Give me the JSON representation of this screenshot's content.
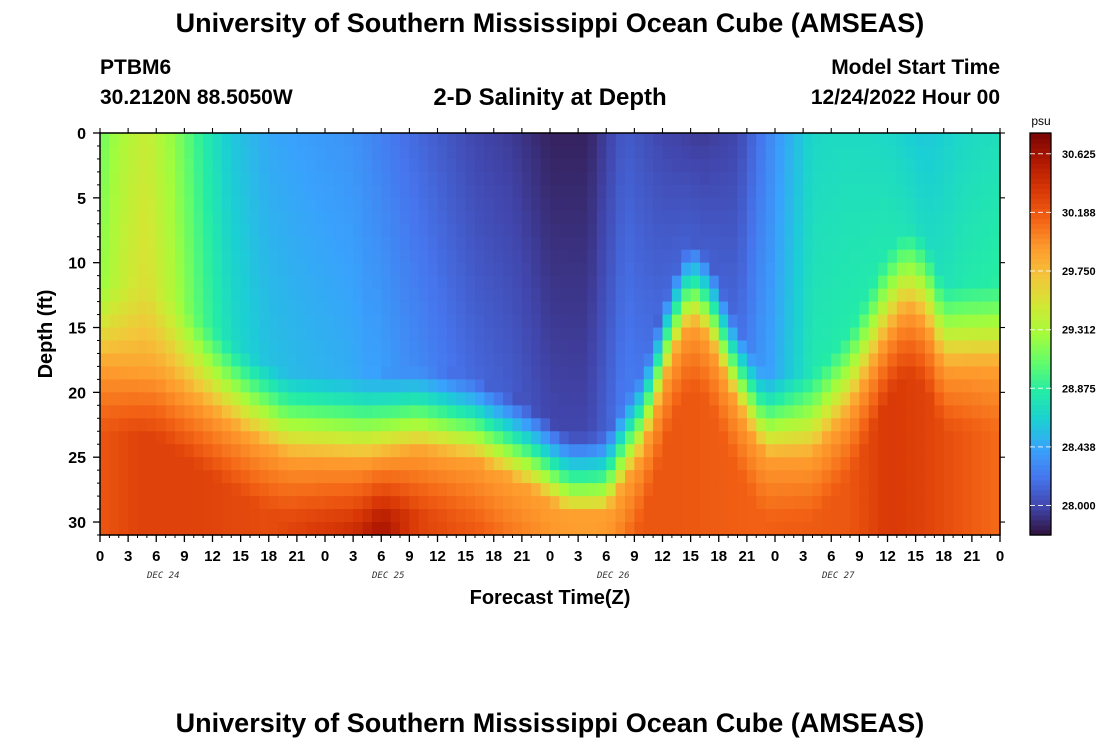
{
  "header": {
    "title": "University of Southern Mississippi Ocean Cube (AMSEAS)",
    "station": "PTBM6",
    "coords": "30.2120N  88.5050W",
    "subtitle": "2-D Salinity at Depth",
    "model_start_label": "Model Start Time",
    "model_start_value": "12/24/2022 Hour 00"
  },
  "footer": {
    "title": "University of Southern Mississippi Ocean Cube (AMSEAS)"
  },
  "chart_data": {
    "type": "heatmap",
    "title": "2-D Salinity at Depth",
    "xlabel": "Forecast Time(Z)",
    "ylabel": "Depth (ft)",
    "x_tick_labels": [
      "0",
      "3",
      "6",
      "9",
      "12",
      "15",
      "18",
      "21",
      "0",
      "3",
      "6",
      "9",
      "12",
      "15",
      "18",
      "21",
      "0",
      "3",
      "6",
      "9",
      "12",
      "15",
      "18",
      "21",
      "0",
      "3",
      "6",
      "9",
      "12",
      "15",
      "18",
      "21",
      "0"
    ],
    "date_labels": [
      "DEC 24",
      "DEC 25",
      "DEC 26",
      "DEC 27"
    ],
    "x_range_hours": [
      0,
      96
    ],
    "y_ticks": [
      0,
      5,
      10,
      15,
      20,
      25,
      30
    ],
    "y_range": [
      0,
      31
    ],
    "colorbar": {
      "unit": "psu",
      "ticks": [
        "30.625",
        "30.188",
        "29.750",
        "29.312",
        "28.875",
        "28.438",
        "28.000"
      ],
      "range": [
        27.78,
        30.78
      ]
    },
    "colorscale": [
      "#30123b",
      "#4145ab",
      "#4675ed",
      "#39a2fc",
      "#1bcfd4",
      "#24eca6",
      "#61fc6c",
      "#a4fc3b",
      "#d1e834",
      "#f3c63a",
      "#fe9b2d",
      "#f36315",
      "#d93806",
      "#b11901",
      "#7a0403"
    ],
    "interface_depth_ft": [
      {
        "h": 0,
        "d": 15.5
      },
      {
        "h": 6,
        "d": 16
      },
      {
        "h": 12,
        "d": 19
      },
      {
        "h": 16,
        "d": 21
      },
      {
        "h": 20,
        "d": 22.5
      },
      {
        "h": 28,
        "d": 22.8
      },
      {
        "h": 34,
        "d": 22
      },
      {
        "h": 40,
        "d": 22.8
      },
      {
        "h": 46,
        "d": 25
      },
      {
        "h": 50,
        "d": 27
      },
      {
        "h": 54,
        "d": 27
      },
      {
        "h": 58,
        "d": 22
      },
      {
        "h": 61,
        "d": 15
      },
      {
        "h": 63,
        "d": 12
      },
      {
        "h": 65,
        "d": 13.5
      },
      {
        "h": 67,
        "d": 17
      },
      {
        "h": 69,
        "d": 20
      },
      {
        "h": 71,
        "d": 22.5
      },
      {
        "h": 76,
        "d": 22.5
      },
      {
        "h": 80,
        "d": 19
      },
      {
        "h": 84,
        "d": 13
      },
      {
        "h": 86,
        "d": 11
      },
      {
        "h": 88,
        "d": 12
      },
      {
        "h": 90,
        "d": 15.5
      },
      {
        "h": 96,
        "d": 15.5
      }
    ],
    "surface_salinity_psu": [
      {
        "h": 0,
        "v": 29.1
      },
      {
        "h": 2,
        "v": 29.3
      },
      {
        "h": 5,
        "v": 29.45
      },
      {
        "h": 8,
        "v": 29.2
      },
      {
        "h": 11,
        "v": 28.85
      },
      {
        "h": 14,
        "v": 28.6
      },
      {
        "h": 18,
        "v": 28.45
      },
      {
        "h": 22,
        "v": 28.4
      },
      {
        "h": 27,
        "v": 28.35
      },
      {
        "h": 32,
        "v": 28.2
      },
      {
        "h": 36,
        "v": 28.1
      },
      {
        "h": 40,
        "v": 28.0
      },
      {
        "h": 44,
        "v": 27.95
      },
      {
        "h": 48,
        "v": 27.85
      },
      {
        "h": 52,
        "v": 27.85
      },
      {
        "h": 56,
        "v": 28.1
      },
      {
        "h": 60,
        "v": 28.0
      },
      {
        "h": 64,
        "v": 27.95
      },
      {
        "h": 68,
        "v": 28.0
      },
      {
        "h": 72,
        "v": 28.35
      },
      {
        "h": 76,
        "v": 28.7
      },
      {
        "h": 80,
        "v": 28.72
      },
      {
        "h": 84,
        "v": 28.7
      },
      {
        "h": 88,
        "v": 28.6
      },
      {
        "h": 92,
        "v": 28.7
      },
      {
        "h": 96,
        "v": 28.75
      }
    ],
    "deep_core_salinity_psu": [
      {
        "h": 0,
        "v": 30.2
      },
      {
        "h": 4,
        "v": 30.3
      },
      {
        "h": 10,
        "v": 30.3
      },
      {
        "h": 18,
        "v": 30.25
      },
      {
        "h": 27,
        "v": 30.4
      },
      {
        "h": 30,
        "v": 30.6
      },
      {
        "h": 34,
        "v": 30.3
      },
      {
        "h": 46,
        "v": 30.05
      },
      {
        "h": 52,
        "v": 29.9
      },
      {
        "h": 58,
        "v": 30.2
      },
      {
        "h": 62,
        "v": 30.2
      },
      {
        "h": 70,
        "v": 30.15
      },
      {
        "h": 80,
        "v": 30.2
      },
      {
        "h": 84,
        "v": 30.35
      },
      {
        "h": 88,
        "v": 30.3
      },
      {
        "h": 96,
        "v": 30.1
      }
    ]
  }
}
